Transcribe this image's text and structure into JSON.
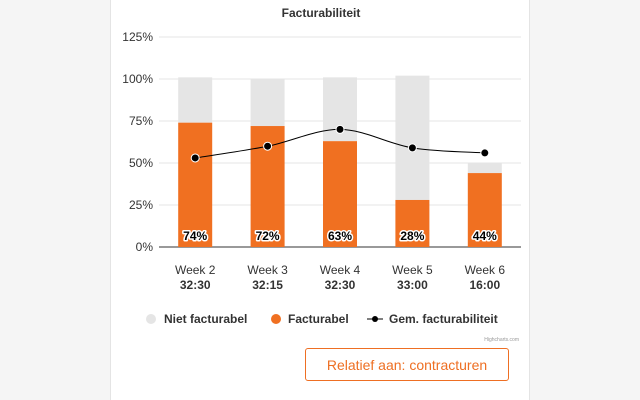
{
  "colors": {
    "niet": "#e5e5e5",
    "facturabel": "#f07021",
    "line": "#000000",
    "accent": "#ee6f23"
  },
  "chart_data": {
    "type": "bar",
    "stacking": "normal",
    "title": "Facturabiliteit",
    "yticks": [
      "125%",
      "100%",
      "75%",
      "50%",
      "25%",
      "0%"
    ],
    "ylim": [
      0,
      125
    ],
    "categories": [
      {
        "label": "Week 2",
        "sub": "32:30"
      },
      {
        "label": "Week 3",
        "sub": "32:15"
      },
      {
        "label": "Week 4",
        "sub": "32:30"
      },
      {
        "label": "Week 5",
        "sub": "33:00"
      },
      {
        "label": "Week 6",
        "sub": "16:00"
      }
    ],
    "series": [
      {
        "name": "Niet facturabel",
        "type": "bar",
        "values": [
          27,
          28,
          38,
          74,
          6
        ]
      },
      {
        "name": "Facturabel",
        "type": "bar",
        "values": [
          74,
          72,
          63,
          28,
          44
        ],
        "labels": [
          "74%",
          "72%",
          "63%",
          "28%",
          "44%"
        ]
      },
      {
        "name": "Gem. facturabiliteit",
        "type": "line",
        "values": [
          53,
          60,
          70,
          59,
          56
        ]
      }
    ],
    "legend": [
      "Niet facturabel",
      "Facturabel",
      "Gem. facturabiliteit"
    ],
    "credits": "Highcharts.com"
  },
  "button": {
    "label": "Relatief aan: contracturen"
  }
}
